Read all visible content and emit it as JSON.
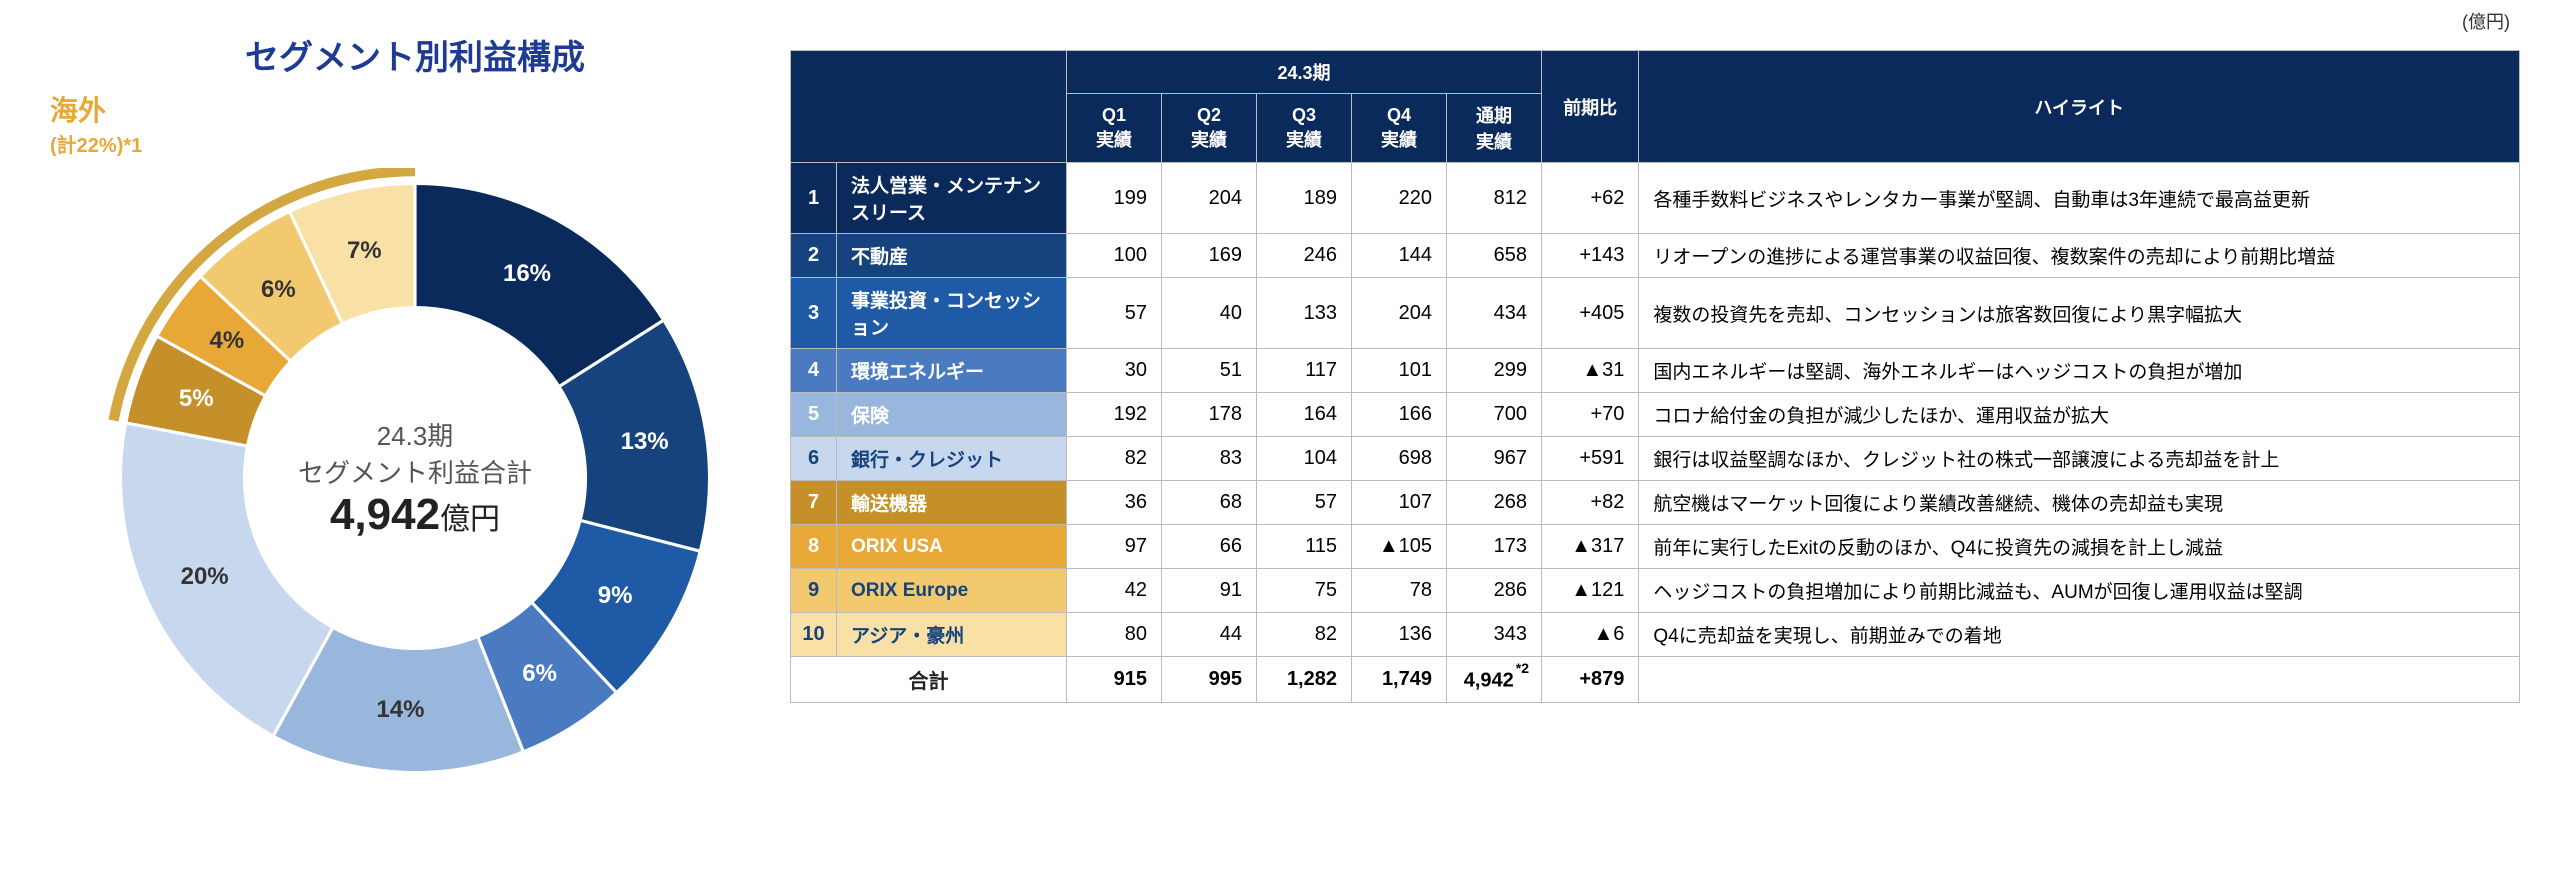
{
  "unit_label": "(億円)",
  "chart": {
    "title": "セグメント別利益構成",
    "overseas_label": "海外",
    "overseas_sub": "(計22%)*1",
    "center_line1": "24.3期",
    "center_line2": "セグメント利益合計",
    "center_value": "4,942",
    "center_unit": "億円",
    "type": "donut",
    "inner_radius_pct": 55,
    "outer_radius_pct": 95,
    "arc_stroke": "#d4a841",
    "arc_stroke_width": 10,
    "slices": [
      {
        "pct": 16,
        "label": "16%",
        "color": "#0b2a5c",
        "label_color": "#ffffff"
      },
      {
        "pct": 13,
        "label": "13%",
        "color": "#16437e",
        "label_color": "#ffffff"
      },
      {
        "pct": 9,
        "label": "9%",
        "color": "#1f5aa6",
        "label_color": "#ffffff"
      },
      {
        "pct": 6,
        "label": "6%",
        "color": "#4a7bc0",
        "label_color": "#ffffff"
      },
      {
        "pct": 14,
        "label": "14%",
        "color": "#99b6dd",
        "label_color": "#333333"
      },
      {
        "pct": 20,
        "label": "20%",
        "color": "#c7d7ee",
        "label_color": "#333333"
      },
      {
        "pct": 5,
        "label": "5%",
        "color": "#c5902a",
        "label_color": "#ffffff"
      },
      {
        "pct": 4,
        "label": "4%",
        "color": "#e8a838",
        "label_color": "#333333"
      },
      {
        "pct": 6,
        "label": "6%",
        "color": "#f3c96f",
        "label_color": "#333333"
      },
      {
        "pct": 7,
        "label": "7%",
        "color": "#f8e0a7",
        "label_color": "#333333"
      }
    ]
  },
  "table": {
    "header_period": "24.3期",
    "header_cols": [
      "Q1\n実績",
      "Q2\n実績",
      "Q3\n実績",
      "Q4\n実績",
      "通期\n実績"
    ],
    "header_yoy": "前期比",
    "header_highlight": "ハイライト",
    "row_colors": {
      "1": "#0b2a5c",
      "2": "#16437e",
      "3": "#1f5aa6",
      "4": "#4a7bc0",
      "5": "#99b6dd",
      "6": "#c7d7ee",
      "7": "#c5902a",
      "8": "#e8a838",
      "9": "#f3c96f",
      "10": "#f8e0a7"
    },
    "row_text_colors": {
      "1": "#ffffff",
      "2": "#ffffff",
      "3": "#ffffff",
      "4": "#ffffff",
      "5": "#ffffff",
      "6": "#16437e",
      "7": "#ffffff",
      "8": "#ffffff",
      "9": "#16437e",
      "10": "#16437e"
    },
    "rows": [
      {
        "n": "1",
        "name": "法人営業・メンテナンスリース",
        "q": [
          "199",
          "204",
          "189",
          "220",
          "812"
        ],
        "yoy": "+62",
        "hl": "各種手数料ビジネスやレンタカー事業が堅調、自動車は3年連続で最高益更新"
      },
      {
        "n": "2",
        "name": "不動産",
        "q": [
          "100",
          "169",
          "246",
          "144",
          "658"
        ],
        "yoy": "+143",
        "hl": "リオープンの進捗による運営事業の収益回復、複数案件の売却により前期比増益"
      },
      {
        "n": "3",
        "name": "事業投資・コンセッション",
        "q": [
          "57",
          "40",
          "133",
          "204",
          "434"
        ],
        "yoy": "+405",
        "hl": "複数の投資先を売却、コンセッションは旅客数回復により黒字幅拡大"
      },
      {
        "n": "4",
        "name": "環境エネルギー",
        "q": [
          "30",
          "51",
          "117",
          "101",
          "299"
        ],
        "yoy": "▲31",
        "hl": "国内エネルギーは堅調、海外エネルギーはヘッジコストの負担が増加"
      },
      {
        "n": "5",
        "name": "保険",
        "q": [
          "192",
          "178",
          "164",
          "166",
          "700"
        ],
        "yoy": "+70",
        "hl": "コロナ給付金の負担が減少したほか、運用収益が拡大"
      },
      {
        "n": "6",
        "name": "銀行・クレジット",
        "q": [
          "82",
          "83",
          "104",
          "698",
          "967"
        ],
        "yoy": "+591",
        "hl": "銀行は収益堅調なほか、クレジット社の株式一部譲渡による売却益を計上"
      },
      {
        "n": "7",
        "name": "輸送機器",
        "q": [
          "36",
          "68",
          "57",
          "107",
          "268"
        ],
        "yoy": "+82",
        "hl": "航空機はマーケット回復により業績改善継続、機体の売却益も実現"
      },
      {
        "n": "8",
        "name": "ORIX USA",
        "q": [
          "97",
          "66",
          "115",
          "▲105",
          "173"
        ],
        "yoy": "▲317",
        "hl": "前年に実行したExitの反動のほか、Q4に投資先の減損を計上し減益"
      },
      {
        "n": "9",
        "name": "ORIX Europe",
        "q": [
          "42",
          "91",
          "75",
          "78",
          "286"
        ],
        "yoy": "▲121",
        "hl": "ヘッジコストの負担増加により前期比減益も、AUMが回復し運用収益は堅調"
      },
      {
        "n": "10",
        "name": "アジア・豪州",
        "q": [
          "80",
          "44",
          "82",
          "136",
          "343"
        ],
        "yoy": "▲6",
        "hl": "Q4に売却益を実現し、前期並みでの着地"
      }
    ],
    "total_label": "合計",
    "total_q": [
      "915",
      "995",
      "1,282",
      "1,749",
      "4,942"
    ],
    "total_footnote": "*2",
    "total_yoy": "+879"
  }
}
